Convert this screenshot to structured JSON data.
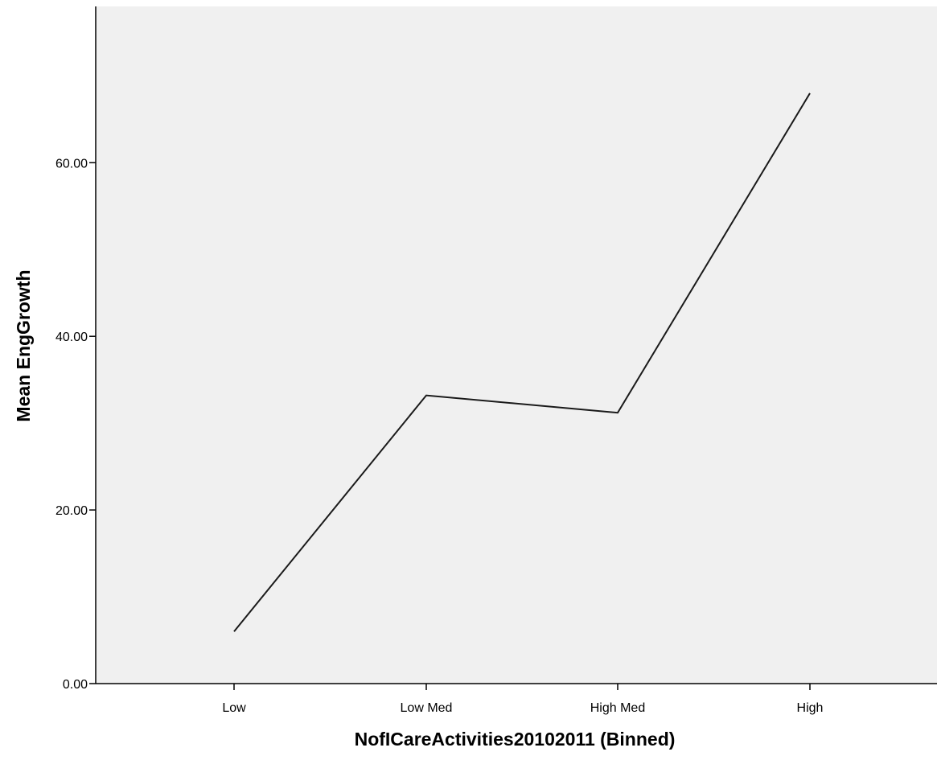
{
  "chart_data": {
    "type": "line",
    "title": "",
    "xlabel": "NofICareActivities20102011 (Binned)",
    "ylabel": "Mean EngGrowth",
    "categories": [
      "Low",
      "Low Med",
      "High Med",
      "High"
    ],
    "series": [
      {
        "values": [
          6.0,
          33.2,
          31.2,
          68.0
        ]
      }
    ],
    "ylim": [
      0,
      78
    ],
    "yticks": [
      0,
      20,
      40,
      60
    ],
    "ytick_labels": [
      "0.00",
      "20.00",
      "40.00",
      "60.00"
    ],
    "grid": false,
    "legend": "none",
    "colors": {
      "plot_background": "#f0f0f0",
      "line": "#1a1a1a",
      "axis": "#000000"
    }
  }
}
